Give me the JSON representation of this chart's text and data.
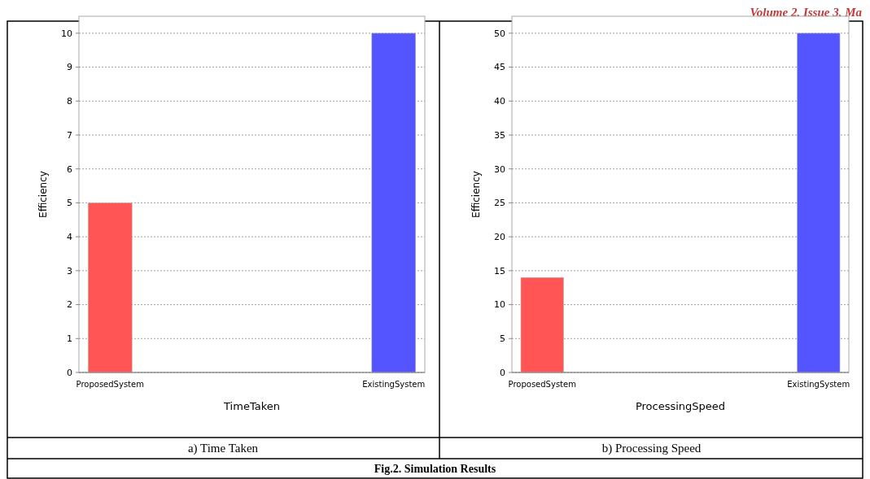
{
  "chart_data": [
    {
      "type": "bar",
      "categories": [
        "ProposedSystem",
        "ExistingSystem"
      ],
      "values": [
        5,
        10
      ],
      "colors": [
        "#ff5555",
        "#5555ff"
      ],
      "xlabel": "TimeTaken",
      "ylabel": "Efficiency",
      "ylim": [
        0,
        10.5
      ],
      "yticks": [
        0,
        1,
        2,
        3,
        4,
        5,
        6,
        7,
        8,
        9,
        10
      ],
      "grid": "y",
      "annotations": [
        "a)  Time Taken",
        "Fig.2. Simulation Results"
      ]
    },
    {
      "type": "bar",
      "categories": [
        "ProposedSystem",
        "ExistingSystem"
      ],
      "values": [
        14,
        50
      ],
      "colors": [
        "#ff5555",
        "#5555ff"
      ],
      "xlabel": "ProcessingSpeed",
      "ylabel": "Efficiency",
      "ylim": [
        0,
        52.5
      ],
      "yticks": [
        0,
        5,
        10,
        15,
        20,
        25,
        30,
        35,
        40,
        45,
        50
      ],
      "grid": "y",
      "annotations": [
        "b) Processing Speed",
        "Volume 2, Issue 3, Ma"
      ]
    }
  ]
}
